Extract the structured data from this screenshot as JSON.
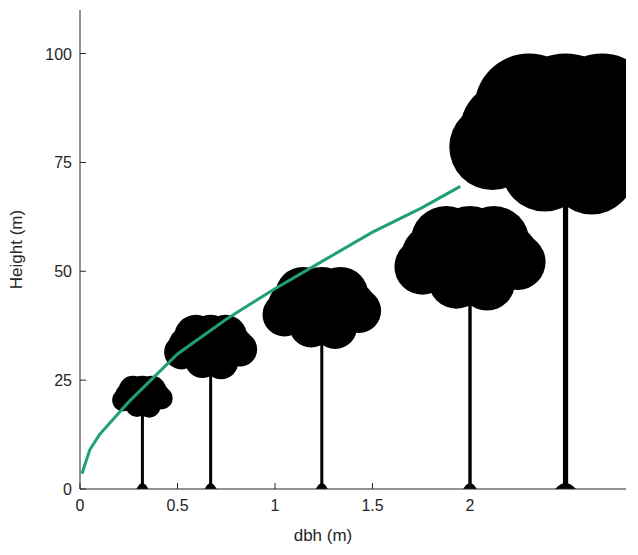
{
  "chart_data": {
    "type": "line",
    "x_label": "dbh (m)",
    "y_label": "Height (m)",
    "xlim": [
      0,
      2.8
    ],
    "ylim": [
      0,
      110
    ],
    "xticks": [
      0,
      0.5,
      1,
      1.5,
      2
    ],
    "yticks": [
      0,
      25,
      50,
      75,
      100
    ],
    "grid": false,
    "series": [
      {
        "type": "line",
        "color": "#1f9e78",
        "line_style": "solid",
        "x": [
          0.01,
          0.05,
          0.1,
          0.25,
          0.5,
          0.75,
          1,
          1.25,
          1.5,
          1.75,
          1.95
        ],
        "values": [
          3.5,
          9,
          12.5,
          20,
          31,
          39,
          46,
          52.5,
          59,
          64.5,
          69.5
        ]
      },
      {
        "type": "scatter",
        "marker": "tree",
        "color": "#000000",
        "x": [
          0.32,
          0.67,
          1.24,
          2.0,
          2.49
        ],
        "values": [
          26,
          40,
          51,
          65,
          100
        ]
      }
    ]
  }
}
